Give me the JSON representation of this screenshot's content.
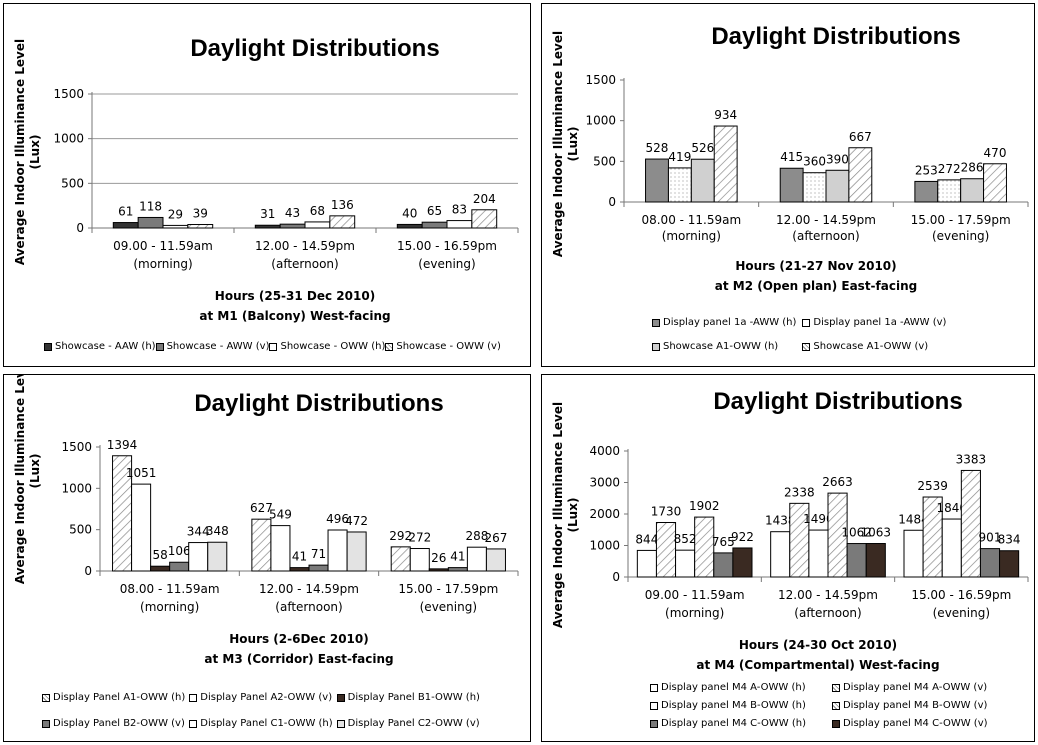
{
  "chart_data": [
    {
      "type": "bar",
      "title": "Daylight Distributions",
      "ylabel": "Average Indoor Illuminance Level (Lux)",
      "xlabel": [
        "Hours (25-31 Dec 2010)",
        "at M1 (Balcony) West-facing"
      ],
      "ylim": [
        0,
        1500
      ],
      "yticks": [
        0,
        500,
        1000,
        1500
      ],
      "grid": true,
      "legend_position": "bottom",
      "categories": [
        [
          "09.00 - 11.59am",
          "(morning)"
        ],
        [
          "12.00 - 14.59pm",
          "(afternoon)"
        ],
        [
          "15.00 - 16.59pm",
          "(evening)"
        ]
      ],
      "series": [
        {
          "name": "Showcase - AAW (h)",
          "values": [
            61,
            31,
            40
          ],
          "fill": "#333333",
          "pattern": "solid"
        },
        {
          "name": "Showcase - AWW (v)",
          "values": [
            118,
            43,
            65
          ],
          "fill": "#7a7a7a",
          "pattern": "solid"
        },
        {
          "name": "Showcase - OWW (h)",
          "values": [
            29,
            68,
            83
          ],
          "fill": "#ffffff",
          "pattern": "solid"
        },
        {
          "name": "Showcase - OWW (v)",
          "values": [
            39,
            136,
            204
          ],
          "fill": "#ffffff",
          "pattern": "diagonal"
        }
      ]
    },
    {
      "type": "bar",
      "title": "Daylight Distributions",
      "ylabel": "Average Indoor Illuminance Level (Lux)",
      "xlabel": [
        "Hours (21-27 Nov 2010)",
        "at M2 (Open plan) East-facing"
      ],
      "ylim": [
        0,
        1500
      ],
      "yticks": [
        0,
        500,
        1000,
        1500
      ],
      "grid": false,
      "legend_position": "bottom",
      "categories": [
        [
          "08.00 - 11.59am",
          "(morning)"
        ],
        [
          "12.00 - 14.59pm",
          "(afternoon)"
        ],
        [
          "15.00 - 17.59pm",
          "(evening)"
        ]
      ],
      "series": [
        {
          "name": "Display panel 1a -AWW (h)",
          "values": [
            528,
            415,
            253
          ],
          "fill": "#8c8c8c",
          "pattern": "solid"
        },
        {
          "name": "Display panel 1a -AWW (v)",
          "values": [
            419,
            360,
            272
          ],
          "fill": "#ffffff",
          "pattern": "dots"
        },
        {
          "name": "Showcase A1-OWW (h)",
          "values": [
            526,
            390,
            286
          ],
          "fill": "#d0d0d0",
          "pattern": "solid"
        },
        {
          "name": "Showcase A1-OWW (v)",
          "values": [
            934,
            667,
            470
          ],
          "fill": "#ffffff",
          "pattern": "diagonal"
        }
      ]
    },
    {
      "type": "bar",
      "title": "Daylight Distributions",
      "ylabel": "Average Indoor Illuminance Level (Lux)",
      "xlabel": [
        "Hours (2-6Dec 2010)",
        "at M3 (Corridor) East-facing"
      ],
      "ylim": [
        0,
        1500
      ],
      "yticks": [
        0,
        500,
        1000,
        1500
      ],
      "grid": false,
      "legend_position": "bottom",
      "categories": [
        [
          "08.00 - 11.59am",
          "(morning)"
        ],
        [
          "12.00 - 14.59pm",
          "(afternoon)"
        ],
        [
          "15.00 - 17.59pm",
          "(evening)"
        ]
      ],
      "series": [
        {
          "name": "Display Panel A1-OWW (h)",
          "values": [
            1394,
            627,
            292
          ],
          "fill": "#ffffff",
          "pattern": "diagonal"
        },
        {
          "name": "Display Panel A2-OWW (v)",
          "values": [
            1051,
            549,
            272
          ],
          "fill": "#ffffff",
          "pattern": "solid"
        },
        {
          "name": "Display Panel B1-OWW (h)",
          "values": [
            58,
            41,
            26
          ],
          "fill": "#3a2a22",
          "pattern": "solid"
        },
        {
          "name": "Display Panel B2-OWW (v)",
          "values": [
            106,
            71,
            41
          ],
          "fill": "#7a7a7a",
          "pattern": "solid"
        },
        {
          "name": "Display Panel C1-OWW (h)",
          "values": [
            344,
            496,
            288
          ],
          "fill": "#ffffff",
          "pattern": "solid"
        },
        {
          "name": "Display Panel C2-OWW (v)",
          "values": [
            348,
            472,
            267
          ],
          "fill": "#e3e3e3",
          "pattern": "solid"
        }
      ]
    },
    {
      "type": "bar",
      "title": "Daylight Distributions",
      "ylabel": "Average Indoor Illuminance Level (Lux)",
      "xlabel": [
        "Hours (24-30 Oct 2010)",
        "at M4 (Compartmental) West-facing"
      ],
      "ylim": [
        0,
        4000
      ],
      "yticks": [
        0,
        1000,
        2000,
        3000,
        4000
      ],
      "grid": false,
      "legend_position": "bottom",
      "categories": [
        [
          "09.00 - 11.59am",
          "(morning)"
        ],
        [
          "12.00 - 14.59pm",
          "(afternoon)"
        ],
        [
          "15.00 - 16.59pm",
          "(evening)"
        ]
      ],
      "series": [
        {
          "name": "Display panel M4 A-OWW (h)",
          "values": [
            844,
            1438,
            1484
          ],
          "fill": "#ffffff",
          "pattern": "solid"
        },
        {
          "name": "Display panel M4 A-OWW (v)",
          "values": [
            1730,
            2338,
            2539
          ],
          "fill": "#bfbfbf",
          "pattern": "diagonal"
        },
        {
          "name": "Display panel M4 B-OWW (h)",
          "values": [
            852,
            1490,
            1840
          ],
          "fill": "#ffffff",
          "pattern": "solid"
        },
        {
          "name": "Display panel M4 B-OWW (v)",
          "values": [
            1902,
            2663,
            3383
          ],
          "fill": "#ffffff",
          "pattern": "diagonal"
        },
        {
          "name": "Display panel M4 C-OWW (h)",
          "values": [
            765,
            1062,
            901
          ],
          "fill": "#7a7a7a",
          "pattern": "solid"
        },
        {
          "name": "Display panel M4 C-OWW (v)",
          "values": [
            922,
            1063,
            834
          ],
          "fill": "#3a2a22",
          "pattern": "solid"
        }
      ]
    }
  ]
}
